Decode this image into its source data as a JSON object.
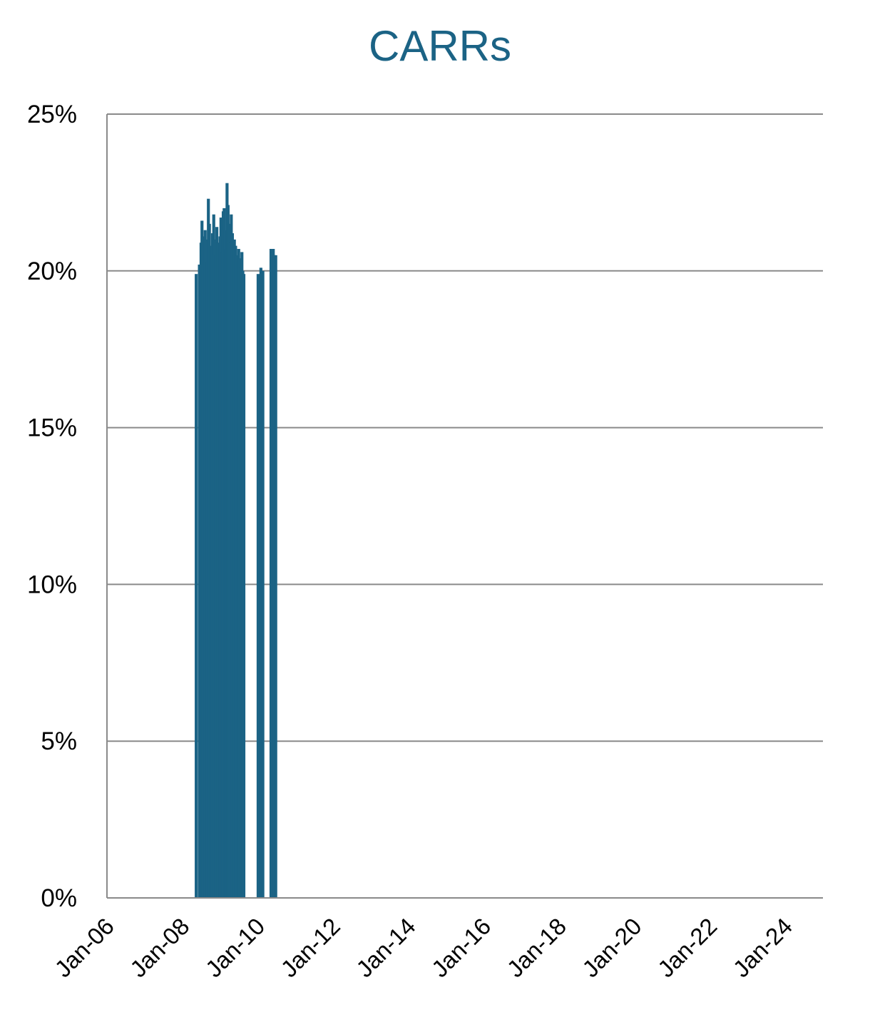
{
  "chart_data": {
    "type": "bar",
    "title": "CARRs",
    "xlabel": "",
    "ylabel": "",
    "x_tick_labels": [
      "Jan-06",
      "Jan-08",
      "Jan-10",
      "Jan-12",
      "Jan-14",
      "Jan-16",
      "Jan-18",
      "Jan-20",
      "Jan-22",
      "Jan-24"
    ],
    "y_tick_labels": [
      "0%",
      "5%",
      "10%",
      "15%",
      "20%",
      "25%"
    ],
    "ylim": [
      0,
      25
    ],
    "xlim": [
      "2006-01",
      "2025-01"
    ],
    "grid": true,
    "color": "#1b6385",
    "x": [
      "2008-05-15",
      "2008-06-15",
      "2008-07-01",
      "2008-07-10",
      "2008-07-20",
      "2008-08-01",
      "2008-08-10",
      "2008-08-20",
      "2008-09-01",
      "2008-09-10",
      "2008-09-20",
      "2008-10-01",
      "2008-10-10",
      "2008-10-20",
      "2008-11-01",
      "2008-11-10",
      "2008-11-20",
      "2008-12-01",
      "2008-12-10",
      "2008-12-20",
      "2009-01-01",
      "2009-01-10",
      "2009-01-20",
      "2009-02-01",
      "2009-02-10",
      "2009-02-20",
      "2009-03-01",
      "2009-03-10",
      "2009-03-20",
      "2009-04-01",
      "2009-04-10",
      "2009-04-20",
      "2009-05-01",
      "2009-05-10",
      "2009-05-20",
      "2009-06-01",
      "2009-06-10",
      "2009-06-20",
      "2009-07-01",
      "2009-07-10",
      "2009-07-20",
      "2009-08-01",
      "2009-08-10",
      "2009-08-20",
      "2010-01-05",
      "2010-02-01",
      "2010-02-10",
      "2010-02-20",
      "2010-05-10",
      "2010-05-20",
      "2010-06-01",
      "2010-06-10",
      "2010-06-25"
    ],
    "values": [
      19.9,
      20.2,
      20.9,
      21.6,
      21.1,
      20.6,
      21.3,
      21.0,
      20.3,
      22.3,
      21.5,
      20.8,
      20.4,
      21.2,
      21.8,
      21.0,
      20.5,
      21.4,
      20.9,
      20.2,
      21.1,
      21.7,
      20.6,
      21.9,
      22.0,
      21.3,
      20.7,
      22.8,
      22.1,
      21.5,
      20.9,
      21.8,
      21.2,
      20.6,
      21.0,
      20.8,
      20.5,
      20.3,
      20.7,
      20.4,
      20.1,
      20.6,
      20.0,
      19.9,
      19.9,
      20.1,
      19.9,
      20.0,
      20.7,
      20.6,
      20.7,
      20.5,
      20.5
    ]
  }
}
